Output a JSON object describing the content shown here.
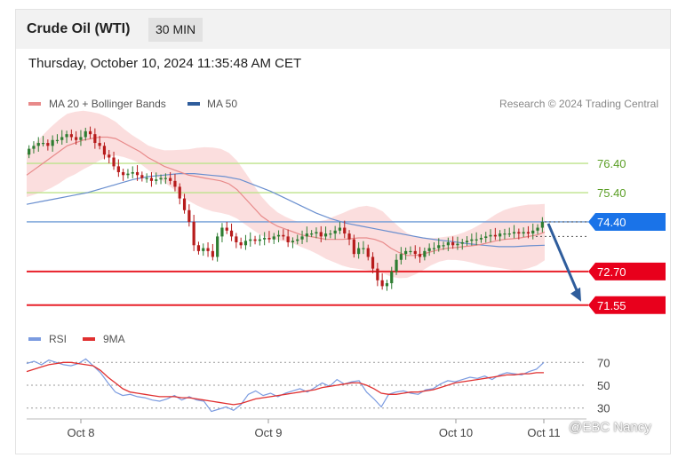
{
  "header": {
    "instrument": "Crude Oil (WTI)",
    "timeframe": "30 MIN",
    "datetime": "Thursday, October 10, 2024 11:35:48 AM CET"
  },
  "legend": {
    "ma20": "MA 20 + Bollinger Bands",
    "ma50": "MA 50",
    "credit": "Research © 2024 Trading Central",
    "rsi": "RSI",
    "ma9": "9MA"
  },
  "watermark": "@EBC Nancy",
  "colors": {
    "resistance": "#bde38b",
    "pivot": "#6f9cd6",
    "support": "#e8202a",
    "pivot_tag": "#1a73e8",
    "support_tag": "#e8001c",
    "candle_up": "#2e7d32",
    "candle_down": "#b71c1c",
    "ma20": "#e88a8a",
    "ma50": "#6a8fcf",
    "bollinger": "#f9d3d3",
    "rsi": "#7b9be0",
    "rsi_ma": "#e03030",
    "arrow": "#2f5d9c"
  },
  "chart_data": [
    {
      "type": "candlestick",
      "title": "Crude Oil (WTI)",
      "ylim": [
        71.3,
        77.8
      ],
      "x_ticks": [
        "Oct 8",
        "Oct 9",
        "Oct 10",
        "Oct 11"
      ],
      "close": [
        76.9,
        77.0,
        77.1,
        77.1,
        77.0,
        77.2,
        77.2,
        77.3,
        77.4,
        77.3,
        77.2,
        77.3,
        77.5,
        77.4,
        77.1,
        77.0,
        76.7,
        76.6,
        76.3,
        76.1,
        76.0,
        76.05,
        76.1,
        76.0,
        75.9,
        75.9,
        75.8,
        75.85,
        75.9,
        75.9,
        75.8,
        75.6,
        75.2,
        74.8,
        74.4,
        73.6,
        73.4,
        73.5,
        73.4,
        73.2,
        73.9,
        74.2,
        74.1,
        73.9,
        73.7,
        73.6,
        73.75,
        73.8,
        73.75,
        73.8,
        73.85,
        73.8,
        73.9,
        73.95,
        73.9,
        73.7,
        73.75,
        73.8,
        73.9,
        74.0,
        74.0,
        74.05,
        73.9,
        74.0,
        74.0,
        74.1,
        74.2,
        74.0,
        73.8,
        73.3,
        73.5,
        73.5,
        73.2,
        72.8,
        72.4,
        72.2,
        72.3,
        72.7,
        73.1,
        73.3,
        73.4,
        73.4,
        73.3,
        73.2,
        73.4,
        73.5,
        73.5,
        73.6,
        73.6,
        73.7,
        73.6,
        73.65,
        73.7,
        73.75,
        73.8,
        73.8,
        73.85,
        73.9,
        73.95,
        73.9,
        74.0,
        74.0,
        74.0,
        74.05,
        74.0,
        74.05,
        74.0,
        74.1,
        74.2,
        74.4
      ],
      "ma20": [
        76.0,
        76.2,
        76.4,
        76.6,
        76.8,
        77.0,
        77.1,
        77.2,
        77.25,
        77.3,
        77.3,
        77.25,
        77.1,
        76.95,
        76.8,
        76.6,
        76.45,
        76.3,
        76.2,
        76.1,
        76.0,
        75.95,
        75.9,
        75.85,
        75.8,
        75.7,
        75.5,
        75.2,
        74.9,
        74.6,
        74.4,
        74.25,
        74.15,
        74.05,
        73.95,
        73.9,
        73.85,
        73.8,
        73.8,
        73.8,
        73.82,
        73.85,
        73.85,
        73.8,
        73.7,
        73.5,
        73.35,
        73.25,
        73.25,
        73.3,
        73.38,
        73.45,
        73.5,
        73.52,
        73.55,
        73.58,
        73.62,
        73.68,
        73.75,
        73.8,
        73.82,
        73.85,
        73.9,
        73.95,
        74.05
      ],
      "ma50": [
        75.0,
        75.1,
        75.2,
        75.3,
        75.4,
        75.55,
        75.7,
        75.85,
        75.95,
        76.0,
        76.05,
        76.05,
        76.0,
        75.95,
        75.85,
        75.65,
        75.45,
        75.2,
        74.95,
        74.7,
        74.5,
        74.35,
        74.25,
        74.15,
        74.05,
        73.95,
        73.85,
        73.78,
        73.72,
        73.65,
        73.6,
        73.55,
        73.55,
        73.58,
        73.6
      ],
      "levels": [
        {
          "label": "76.40",
          "value": 76.4,
          "kind": "resistance"
        },
        {
          "label": "75.40",
          "value": 75.4,
          "kind": "resistance"
        },
        {
          "label": "74.40",
          "value": 74.4,
          "kind": "pivot"
        },
        {
          "label": "72.70",
          "value": 72.7,
          "kind": "support"
        },
        {
          "label": "71.55",
          "value": 71.55,
          "kind": "support"
        }
      ],
      "forecast_arrow": {
        "from": 74.4,
        "to": 71.55,
        "direction": "down"
      }
    },
    {
      "type": "line",
      "title": "RSI",
      "ylim": [
        22,
        78
      ],
      "y_ticks": [
        "70",
        "50",
        "30"
      ],
      "series": [
        {
          "name": "RSI",
          "values": [
            69,
            71,
            68,
            72,
            70,
            68,
            67,
            69,
            73,
            67,
            61,
            52,
            44,
            41,
            42,
            40,
            39,
            37,
            36,
            38,
            41,
            37,
            40,
            37,
            36,
            27,
            29,
            31,
            28,
            33,
            42,
            45,
            41,
            43,
            40,
            43,
            45,
            47,
            44,
            48,
            52,
            49,
            55,
            51,
            53,
            54,
            44,
            38,
            31,
            42,
            44,
            45,
            43,
            42,
            46,
            47,
            51,
            54,
            53,
            55,
            57,
            56,
            58,
            55,
            59,
            61,
            60,
            59,
            62,
            64,
            70
          ]
        },
        {
          "name": "9MA",
          "values": [
            62,
            64,
            66,
            68,
            69,
            70,
            70,
            69,
            68,
            67,
            63,
            57,
            52,
            47,
            44,
            43,
            42,
            41,
            40,
            40,
            40,
            39,
            39,
            38,
            37,
            36,
            35,
            34,
            33,
            34,
            36,
            38,
            39,
            40,
            41,
            42,
            43,
            44,
            45,
            46,
            48,
            49,
            50,
            51,
            52,
            52,
            50,
            47,
            43,
            42,
            42,
            43,
            44,
            44,
            45,
            46,
            48,
            50,
            52,
            53,
            54,
            55,
            56,
            57,
            58,
            59,
            59,
            60,
            60,
            61,
            61
          ]
        }
      ]
    }
  ]
}
